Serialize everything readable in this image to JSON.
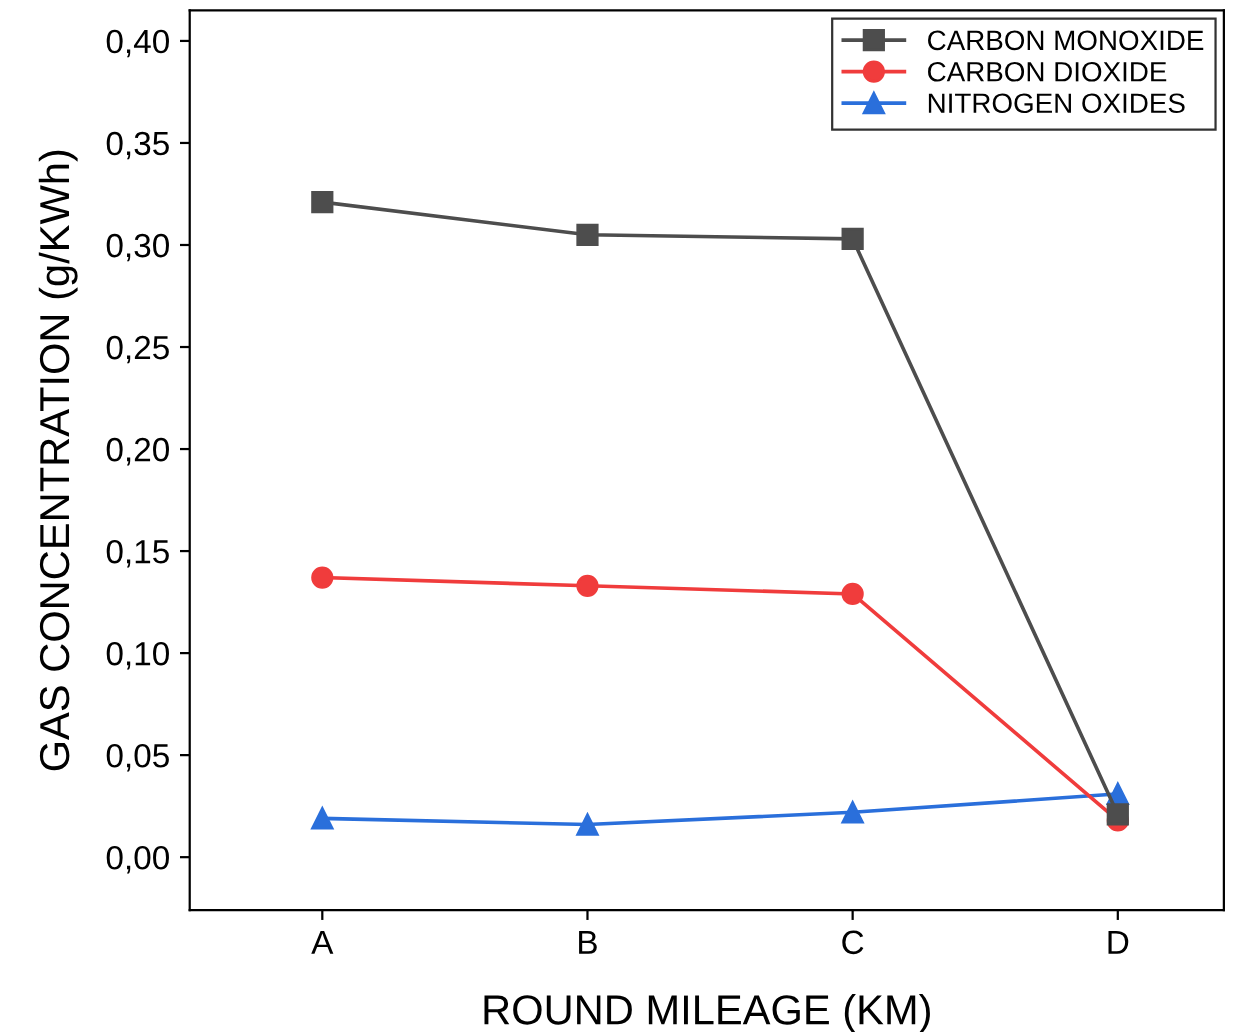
{
  "chart_data": {
    "type": "line",
    "xlabel": "ROUND MILEAGE (KM)",
    "ylabel": "GAS CONCENTRATION (g/KWh)",
    "categories": [
      "A",
      "B",
      "C",
      "D"
    ],
    "series": [
      {
        "name": "CARBON MONOXIDE",
        "color": "#4d4d4d",
        "marker": "square",
        "values": [
          0.321,
          0.305,
          0.303,
          0.021
        ]
      },
      {
        "name": "CARBON DIOXIDE",
        "color": "#f03c3c",
        "marker": "circle",
        "values": [
          0.137,
          0.133,
          0.129,
          0.018
        ]
      },
      {
        "name": "NITROGEN OXIDES",
        "color": "#2a6fdb",
        "marker": "triangle",
        "values": [
          0.019,
          0.016,
          0.022,
          0.031
        ]
      }
    ],
    "ylim": [
      -0.026,
      0.415
    ],
    "yticks": [
      {
        "value": 0,
        "label": "0,00"
      },
      {
        "value": 0.05,
        "label": "0,05"
      },
      {
        "value": 0.1,
        "label": "0,10"
      },
      {
        "value": 0.15,
        "label": "0,15"
      },
      {
        "value": 0.2,
        "label": "0,20"
      },
      {
        "value": 0.25,
        "label": "0,25"
      },
      {
        "value": 0.3,
        "label": "0,30"
      },
      {
        "value": 0.35,
        "label": "0,35"
      },
      {
        "value": 0.4,
        "label": "0,40"
      }
    ],
    "legend": "top right",
    "grid": false,
    "line_style": "solid"
  }
}
